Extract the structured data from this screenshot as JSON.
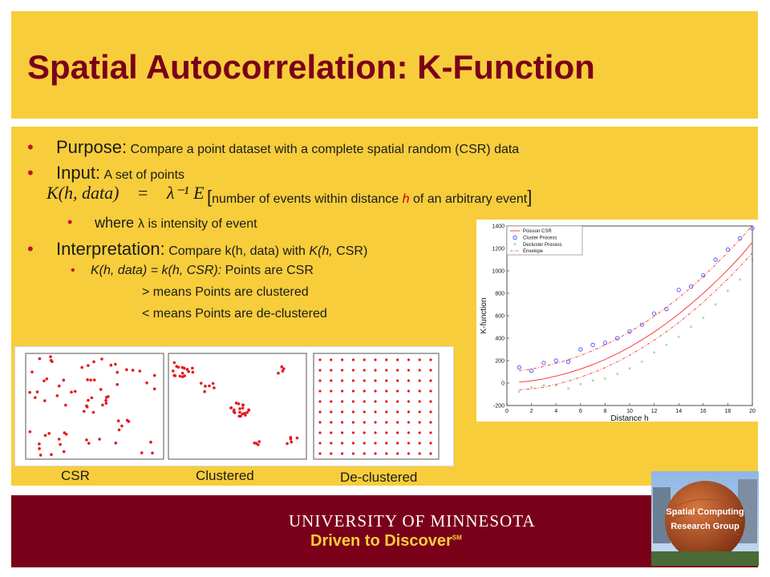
{
  "slide": {
    "title": "Spatial Autocorrelation: K-Function",
    "bullets": {
      "purpose_label": "Purpose:",
      "purpose_text": "Compare a point dataset with a complete spatial random (CSR) data",
      "input_label": "Input:",
      "input_text": "A set of points",
      "formula_lhs": "K(h, data)",
      "formula_eq": "=",
      "formula_rhs": "λ⁻¹ E",
      "formula_bracket_open": "[",
      "formula_text_1": "number of events within distance ",
      "formula_h": "h",
      "formula_text_2": " of an arbitrary event",
      "formula_bracket_close": "]",
      "where_word": "where ",
      "where_text": "λ is intensity of event",
      "interp_label": "Interpretation:",
      "interp_text_1": "Compare k(h, data) with ",
      "interp_italic": "K(h,",
      "interp_text_2": " CSR)",
      "sub_italic": "K(h, data) = k(h, CSR):",
      "sub_text": " Points are CSR",
      "more_text": "> means Points are clustered",
      "less_text": "< means Points are de-clustered"
    },
    "panels": {
      "csr_label": "CSR",
      "clustered_label": "Clustered",
      "declustered_label": "De-clustered"
    },
    "footer": {
      "university": "UNIVERSITY OF MINNESOTA",
      "tagline": "Driven to Discover",
      "tagline_mark": "SM",
      "logo_text_1": "Spatial Computing",
      "logo_text_2": "Research Group"
    },
    "colors": {
      "gold": "#f7cd3b",
      "maroon": "#7a0019",
      "bullet": "#c8102e"
    }
  },
  "chart_data": {
    "type": "scatter",
    "xlabel": "Distance h",
    "ylabel": "K-function",
    "xlim": [
      0,
      20
    ],
    "ylim": [
      -200,
      1400
    ],
    "x_ticks": [
      "0",
      "2",
      "4",
      "6",
      "8",
      "10",
      "12",
      "14",
      "16",
      "18",
      "20"
    ],
    "y_ticks": [
      "-200",
      "0",
      "200",
      "400",
      "600",
      "800",
      "1000",
      "1200",
      "1400"
    ],
    "legend_position": "top-left",
    "series": [
      {
        "name": "Poisson CSR",
        "style": "line",
        "color": "#ff3b3b",
        "x": [
          1,
          2,
          3,
          4,
          5,
          6,
          7,
          8,
          9,
          10,
          11,
          12,
          13,
          14,
          15,
          16,
          17,
          18,
          19,
          20
        ],
        "values": [
          8,
          20,
          38,
          62,
          90,
          125,
          165,
          210,
          262,
          320,
          385,
          455,
          532,
          615,
          705,
          800,
          902,
          1010,
          1125,
          1255
        ]
      },
      {
        "name": "Cluster Process",
        "style": "circle",
        "color": "#3b3bff",
        "x": [
          1,
          2,
          3,
          4,
          5,
          6,
          7,
          8,
          9,
          10,
          11,
          12,
          13,
          14,
          15,
          16,
          17,
          18,
          19,
          20
        ],
        "values": [
          140,
          110,
          180,
          200,
          190,
          300,
          340,
          360,
          400,
          460,
          520,
          620,
          660,
          830,
          860,
          960,
          1100,
          1190,
          1290,
          1380
        ]
      },
      {
        "name": "Decluster Process",
        "style": "x",
        "color": "#2db82d",
        "x": [
          1,
          2,
          3,
          4,
          5,
          6,
          7,
          8,
          9,
          10,
          11,
          12,
          13,
          14,
          15,
          16,
          17,
          18,
          19,
          20
        ],
        "values": [
          -80,
          -40,
          -20,
          -20,
          -50,
          -10,
          20,
          40,
          80,
          130,
          190,
          270,
          340,
          410,
          500,
          580,
          700,
          820,
          920,
          1100
        ]
      },
      {
        "name": "Envelope",
        "style": "dashdot",
        "color": "#ff3b3b",
        "x": [
          1,
          2,
          3,
          4,
          5,
          6,
          7,
          8,
          9,
          10,
          11,
          12,
          13,
          14,
          15,
          16,
          17,
          18,
          19,
          20
        ],
        "upper": [
          110,
          125,
          148,
          176,
          208,
          245,
          290,
          340,
          395,
          455,
          522,
          595,
          675,
          760,
          852,
          950,
          1055,
          1165,
          1280,
          1405
        ],
        "lower": [
          -60,
          -52,
          -36,
          -12,
          18,
          52,
          92,
          138,
          190,
          248,
          312,
          382,
          458,
          540,
          628,
          722,
          822,
          928,
          1040,
          1160
        ]
      }
    ]
  }
}
